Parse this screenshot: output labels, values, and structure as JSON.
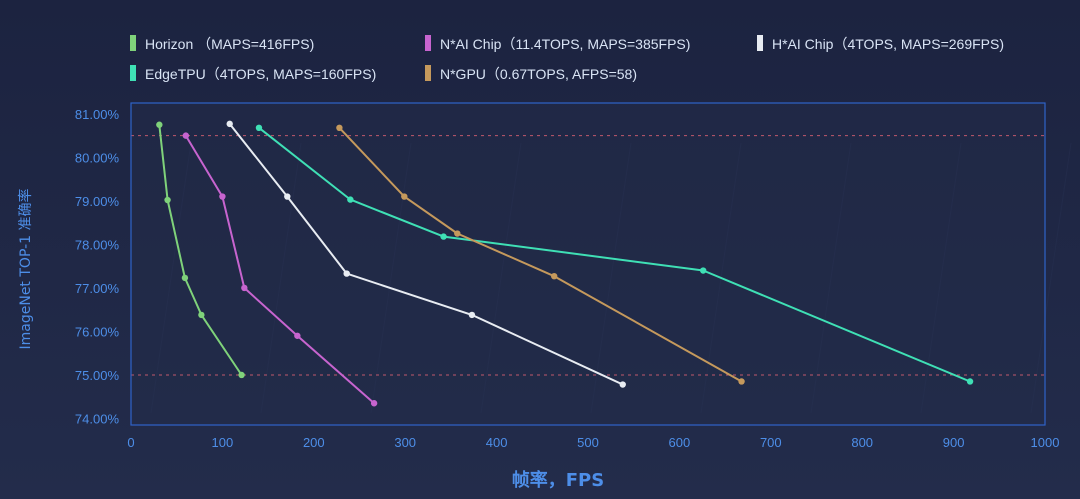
{
  "chart_data": {
    "type": "line",
    "xlabel": "帧率，FPS",
    "ylabel": "ImageNet TOP-1 准确率",
    "xlim": [
      0,
      1000
    ],
    "ylim": [
      74.0,
      81.0
    ],
    "x_ticks": [
      "0",
      "100",
      "200",
      "300",
      "400",
      "500",
      "600",
      "700",
      "800",
      "900",
      "1000"
    ],
    "y_ticks": [
      "74.00%",
      "75.00%",
      "76.00%",
      "77.00%",
      "78.00%",
      "79.00%",
      "80.00%",
      "81.00%"
    ],
    "reference_lines_y": [
      80.5,
      75.0
    ],
    "grid": false,
    "legend_position": "top",
    "series": [
      {
        "name": "Horizon （MAPS=416FPS)",
        "color": "#7fd27a",
        "x": [
          31,
          40,
          59,
          77,
          121
        ],
        "y": [
          80.75,
          79.02,
          77.23,
          76.38,
          75.0
        ]
      },
      {
        "name": "N*AI Chip（11.4TOPS, MAPS=385FPS)",
        "color": "#c764cf",
        "x": [
          60,
          100,
          124,
          182,
          266
        ],
        "y": [
          80.5,
          79.1,
          77.0,
          75.9,
          74.35
        ]
      },
      {
        "name": "H*AI Chip（4TOPS, MAPS=269FPS)",
        "color": "#e8ecf2",
        "x": [
          108,
          171,
          236,
          373,
          538
        ],
        "y": [
          80.77,
          79.1,
          77.33,
          76.38,
          74.78
        ]
      },
      {
        "name": "EdgeTPU（4TOPS, MAPS=160FPS)",
        "color": "#3fe0b5",
        "x": [
          140,
          240,
          342,
          626,
          918
        ],
        "y": [
          80.68,
          79.03,
          78.18,
          77.4,
          74.85
        ]
      },
      {
        "name": "N*GPU（0.67TOPS, AFPS=58)",
        "color": "#c5995c",
        "x": [
          228,
          299,
          357,
          463,
          668
        ],
        "y": [
          80.68,
          79.1,
          78.25,
          77.27,
          74.85
        ]
      }
    ]
  }
}
